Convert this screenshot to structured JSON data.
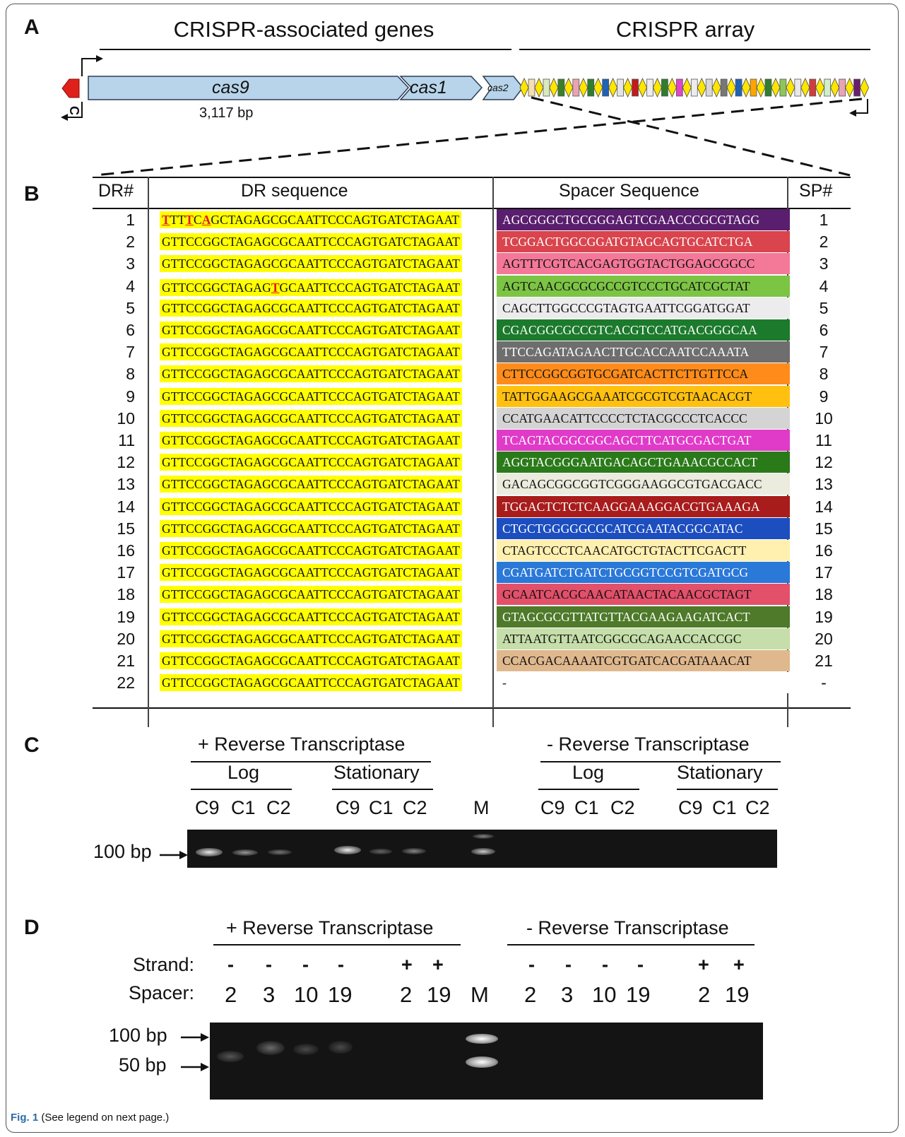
{
  "panel_a": {
    "letter": "A",
    "left_header": "CRISPR-associated genes",
    "right_header": "CRISPR array",
    "gene_cas9": "cas9",
    "gene_cas1": "cas1",
    "gene_cas2": "cas2",
    "cas9_size": "3,117 bp",
    "small_gene_label": "C",
    "array_colors": [
      "#f5deb3",
      "#d8e8c0",
      "#3a7f2a",
      "#e9a3b4",
      "#2f7d2f",
      "#1f62b6",
      "#e4e4e4",
      "#c01c1c",
      "#ececec",
      "#2f7d2f",
      "#e046c8",
      "#ececec",
      "#d8d8d8",
      "#777777",
      "#1f62b6",
      "#ffa500",
      "#2f7d2f",
      "#8cc65a",
      "#e8e8e8",
      "#d23c3c",
      "#d0f0c8",
      "#e9a3b4",
      "#6a1f6e"
    ]
  },
  "panel_b": {
    "letter": "B",
    "col_dr_num": "DR#",
    "col_dr_seq": "DR sequence",
    "col_sp_seq": "Spacer Sequence",
    "col_sp_num": "SP#",
    "row1_dr": {
      "m1": "T",
      "a": "TT",
      "m2": "T",
      "b": "C",
      "m3": "A",
      "rest": "GCTAGAGCGCAATTCCCAGTGATCTAGAAT"
    },
    "row4_dr": {
      "a": "GTTCCGGCTAGAG",
      "m": "T",
      "rest": "GCAATTCCCAGTGATCTAGAAT"
    },
    "rows": [
      {
        "dr": "1",
        "dr_seq": "",
        "sp_seq": "AGCGGGCTGCGGGAGTCGAACCCGCGTAGG",
        "sp": "1",
        "sp_color": "#5a1e6e",
        "sp_text_color": "#ffffff"
      },
      {
        "dr": "2",
        "dr_seq": "GTTCCGGCTAGAGCGCAATTCCCAGTGATCTAGAAT",
        "sp_seq": "TCGGACTGGCGGATGTAGCAGTGCATCTGA",
        "sp": "2",
        "sp_color": "#d9444d",
        "sp_text_color": "#ffffff"
      },
      {
        "dr": "3",
        "dr_seq": "GTTCCGGCTAGAGCGCAATTCCCAGTGATCTAGAAT",
        "sp_seq": "AGTTTCGTCACGAGTGGTACTGGAGCGGCC",
        "sp": "3",
        "sp_color": "#f47898",
        "sp_text_color": "#111111"
      },
      {
        "dr": "4",
        "dr_seq": "",
        "sp_seq": "AGTCAACGCGCGCCGTCCCTGCATCGCTAT",
        "sp": "4",
        "sp_color": "#7cc444",
        "sp_text_color": "#111111"
      },
      {
        "dr": "5",
        "dr_seq": "GTTCCGGCTAGAGCGCAATTCCCAGTGATCTAGAAT",
        "sp_seq": "CAGCTTGGCCCGTAGTGAATTCGGATGGAT",
        "sp": "5",
        "sp_color": "#ececec",
        "sp_text_color": "#111111"
      },
      {
        "dr": "6",
        "dr_seq": "GTTCCGGCTAGAGCGCAATTCCCAGTGATCTAGAAT",
        "sp_seq": "CGACGGCGCCGTCACGTCCATGACGGGCAA",
        "sp": "6",
        "sp_color": "#1c7a2c",
        "sp_text_color": "#ffffff"
      },
      {
        "dr": "7",
        "dr_seq": "GTTCCGGCTAGAGCGCAATTCCCAGTGATCTAGAAT",
        "sp_seq": "TTCCAGATAGAACTTGCACCAATCCAAATA",
        "sp": "7",
        "sp_color": "#6e6e6e",
        "sp_text_color": "#ffffff"
      },
      {
        "dr": "8",
        "dr_seq": "GTTCCGGCTAGAGCGCAATTCCCAGTGATCTAGAAT",
        "sp_seq": "CTTCCGGCGGTGCGATCACTTCTTGTTCCA",
        "sp": "8",
        "sp_color": "#ff8c1a",
        "sp_text_color": "#111111"
      },
      {
        "dr": "9",
        "dr_seq": "GTTCCGGCTAGAGCGCAATTCCCAGTGATCTAGAAT",
        "sp_seq": "TATTGGAAGCGAAATCGCGTCGTAACACGT",
        "sp": "9",
        "sp_color": "#ffc010",
        "sp_text_color": "#111111"
      },
      {
        "dr": "10",
        "dr_seq": "GTTCCGGCTAGAGCGCAATTCCCAGTGATCTAGAAT",
        "sp_seq": "CCATGAACATTCCCCTCTACGCCCTCACCC",
        "sp": "10",
        "sp_color": "#d4d4d4",
        "sp_text_color": "#111111"
      },
      {
        "dr": "11",
        "dr_seq": "GTTCCGGCTAGAGCGCAATTCCCAGTGATCTAGAAT",
        "sp_seq": "TCAGTACGGCGGCAGCTTCATGCGACTGAT",
        "sp": "11",
        "sp_color": "#e03ac8",
        "sp_text_color": "#ffffff"
      },
      {
        "dr": "12",
        "dr_seq": "GTTCCGGCTAGAGCGCAATTCCCAGTGATCTAGAAT",
        "sp_seq": "AGGTACGGGAATGACAGCTGAAACGCCACT",
        "sp": "12",
        "sp_color": "#2a7a1a",
        "sp_text_color": "#ffffff"
      },
      {
        "dr": "13",
        "dr_seq": "GTTCCGGCTAGAGCGCAATTCCCAGTGATCTAGAAT",
        "sp_seq": "GACAGCGGCGGTCGGGAAGGCGTGACGACC",
        "sp": "13",
        "sp_color": "#ebebde",
        "sp_text_color": "#111111"
      },
      {
        "dr": "14",
        "dr_seq": "GTTCCGGCTAGAGCGCAATTCCCAGTGATCTAGAAT",
        "sp_seq": "TGGACTCTCTCAAGGAAAGGACGTGAAAGA",
        "sp": "14",
        "sp_color": "#a81c1c",
        "sp_text_color": "#ffffff"
      },
      {
        "dr": "15",
        "dr_seq": "GTTCCGGCTAGAGCGCAATTCCCAGTGATCTAGAAT",
        "sp_seq": "CTGCTGGGGGCGCATCGAATACGGCATAC",
        "sp": "15",
        "sp_color": "#1c4ec0",
        "sp_text_color": "#ffffff"
      },
      {
        "dr": "16",
        "dr_seq": "GTTCCGGCTAGAGCGCAATTCCCAGTGATCTAGAAT",
        "sp_seq": "CTAGTCCCTCAACATGCTGTACTTCGACTT",
        "sp": "16",
        "sp_color": "#fff0b0",
        "sp_text_color": "#111111"
      },
      {
        "dr": "17",
        "dr_seq": "GTTCCGGCTAGAGCGCAATTCCCAGTGATCTAGAAT",
        "sp_seq": "CGATGATCTGATCTGCGGTCCGTCGATGCG",
        "sp": "17",
        "sp_color": "#2a78d8",
        "sp_text_color": "#ffffff"
      },
      {
        "dr": "18",
        "dr_seq": "GTTCCGGCTAGAGCGCAATTCCCAGTGATCTAGAAT",
        "sp_seq": "GCAATCACGCAACATAACTACAACGCTAGT",
        "sp": "18",
        "sp_color": "#e2506a",
        "sp_text_color": "#111111"
      },
      {
        "dr": "19",
        "dr_seq": "GTTCCGGCTAGAGCGCAATTCCCAGTGATCTAGAAT",
        "sp_seq": "GTAGCGCGTTATGTTACGAAGAAGATCACT",
        "sp": "19",
        "sp_color": "#4e7a2a",
        "sp_text_color": "#ffffff"
      },
      {
        "dr": "20",
        "dr_seq": "GTTCCGGCTAGAGCGCAATTCCCAGTGATCTAGAAT",
        "sp_seq": "ATTAATGTTAATCGGCGCAGAACCACCGC",
        "sp": "20",
        "sp_color": "#c6deaa",
        "sp_text_color": "#111111"
      },
      {
        "dr": "21",
        "dr_seq": "GTTCCGGCTAGAGCGCAATTCCCAGTGATCTAGAAT",
        "sp_seq": "CCACGACAAAATCGTGATCACGATAAACAT",
        "sp": "21",
        "sp_color": "#e0b88e",
        "sp_text_color": "#111111"
      },
      {
        "dr": "22",
        "dr_seq": "GTTCCGGCTAGAGCGCAATTCCCAGTGATCTAGAAT",
        "sp_seq": "-",
        "sp": "-",
        "sp_color": "#ffffff",
        "sp_text_color": "#111111"
      }
    ]
  },
  "panel_c": {
    "letter": "C",
    "plus_rt": "+ Reverse Transcriptase",
    "minus_rt": "- Reverse Transcriptase",
    "log": "Log",
    "stationary": "Stationary",
    "c9": "C9",
    "c1": "C1",
    "c2": "C2",
    "marker": "M",
    "size_label": "100 bp"
  },
  "panel_d": {
    "letter": "D",
    "plus_rt": "+ Reverse Transcriptase",
    "minus_rt": "- Reverse Transcriptase",
    "strand_label": "Strand:",
    "spacer_label": "Spacer:",
    "minus": "-",
    "plus": "+",
    "sp2": "2",
    "sp3": "3",
    "sp10": "10",
    "sp19": "19",
    "marker": "M",
    "size_100": "100 bp",
    "size_50": "50 bp"
  },
  "caption": {
    "fig": "Fig. 1",
    "text": " (See legend on next page.)"
  }
}
